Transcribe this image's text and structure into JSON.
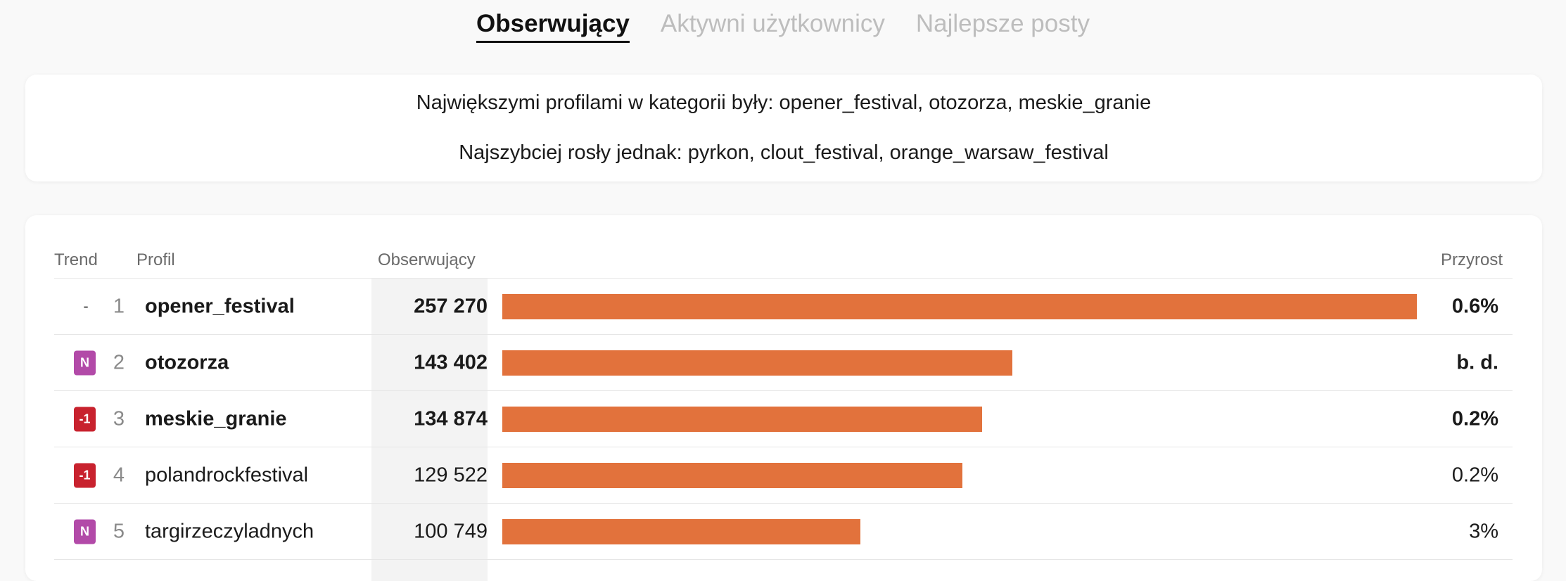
{
  "tabs": [
    {
      "label": "Obserwujący",
      "active": true
    },
    {
      "label": "Aktywni użytkownicy",
      "active": false
    },
    {
      "label": "Najlepsze posty",
      "active": false
    }
  ],
  "summary": {
    "line1": "Największymi profilami w kategorii były: opener_festival, otozorza, meskie_granie",
    "line2": "Najszybciej rosły jednak: pyrkon, clout_festival, orange_warsaw_festival"
  },
  "table": {
    "headers": {
      "trend": "Trend",
      "profile": "Profil",
      "followers": "Obserwujący",
      "growth": "Przyrost"
    },
    "max_followers": 257270,
    "rows": [
      {
        "trend": "-",
        "trend_type": "flat",
        "rank": "1",
        "profile": "opener_festival",
        "followers": "257 270",
        "followers_value": 257270,
        "growth": "0.6%",
        "bold": true
      },
      {
        "trend": "N",
        "trend_type": "n",
        "rank": "2",
        "profile": "otozorza",
        "followers": "143 402",
        "followers_value": 143402,
        "growth": "b. d.",
        "bold": true
      },
      {
        "trend": "-1",
        "trend_type": "down",
        "rank": "3",
        "profile": "meskie_granie",
        "followers": "134 874",
        "followers_value": 134874,
        "growth": "0.2%",
        "bold": true
      },
      {
        "trend": "-1",
        "trend_type": "down",
        "rank": "4",
        "profile": "polandrockfestival",
        "followers": "129 522",
        "followers_value": 129522,
        "growth": "0.2%",
        "bold": false
      },
      {
        "trend": "N",
        "trend_type": "n",
        "rank": "5",
        "profile": "targirzeczyladnych",
        "followers": "100 749",
        "followers_value": 100749,
        "growth": "3%",
        "bold": false
      }
    ]
  },
  "colors": {
    "bar": "#e2723c",
    "badge_new": "#b24aa8",
    "badge_down": "#c8222e"
  }
}
